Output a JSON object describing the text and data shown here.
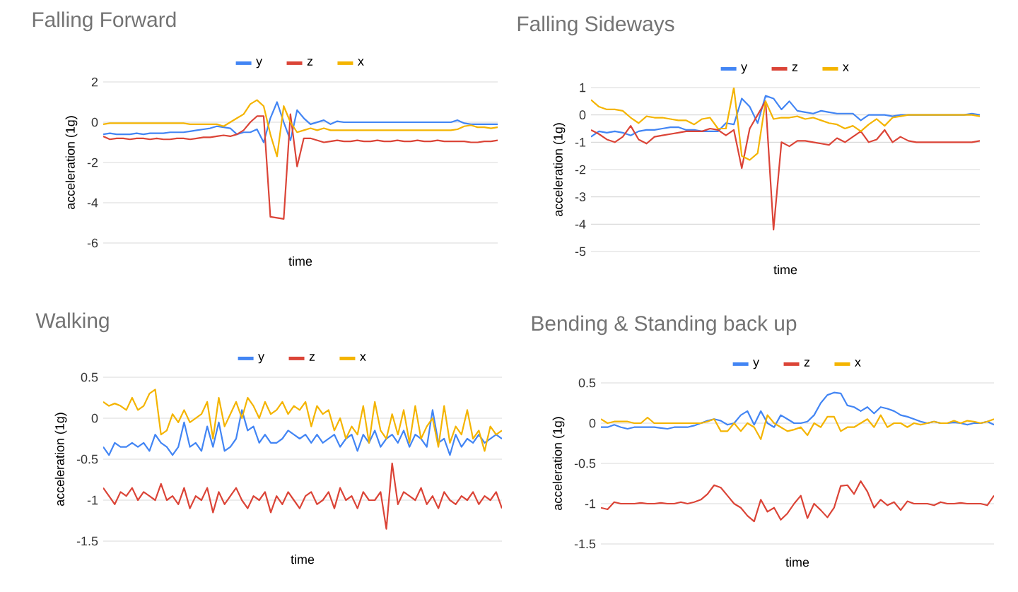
{
  "chart_data": [
    {
      "type": "line",
      "title": "Falling Forward",
      "xlabel": "time",
      "ylabel": "acceleration (1g)",
      "grid": "y",
      "legend": "top",
      "ylim": [
        -6,
        2
      ],
      "yticks": [
        -6,
        -4,
        -2,
        0,
        2
      ],
      "categories": [
        null,
        null,
        null,
        null,
        null,
        null,
        null,
        null,
        null,
        null,
        null,
        null,
        null,
        null,
        null,
        null,
        null,
        null,
        null,
        null,
        null,
        null,
        null,
        null,
        null,
        null,
        null,
        null,
        null,
        null,
        null,
        null,
        null,
        null,
        null,
        null,
        null,
        null,
        null,
        null,
        null,
        null,
        null,
        null,
        null,
        null,
        null,
        null,
        null,
        null,
        null,
        null,
        null,
        null,
        null,
        null,
        null,
        null,
        null,
        null
      ],
      "series": [
        {
          "name": "y",
          "color": "#4285f4",
          "values": [
            -0.6,
            -0.55,
            -0.6,
            -0.6,
            -0.6,
            -0.55,
            -0.6,
            -0.55,
            -0.55,
            -0.55,
            -0.5,
            -0.5,
            -0.5,
            -0.45,
            -0.4,
            -0.35,
            -0.3,
            -0.2,
            -0.25,
            -0.3,
            -0.6,
            -0.5,
            -0.5,
            -0.35,
            -1.0,
            0.2,
            1.0,
            0.0,
            -0.9,
            0.6,
            0.2,
            -0.1,
            0.0,
            0.1,
            -0.1,
            0.05,
            0.0,
            0.0,
            0.0,
            0.0,
            0,
            0,
            0,
            0,
            0,
            0,
            0,
            0,
            0,
            0,
            0,
            0,
            0,
            0.1,
            -0.05,
            -0.1,
            -0.1,
            -0.1,
            -0.1,
            -0.1
          ]
        },
        {
          "name": "z",
          "color": "#db4437",
          "values": [
            -0.7,
            -0.85,
            -0.8,
            -0.8,
            -0.85,
            -0.8,
            -0.8,
            -0.85,
            -0.8,
            -0.85,
            -0.85,
            -0.8,
            -0.8,
            -0.85,
            -0.8,
            -0.75,
            -0.75,
            -0.7,
            -0.65,
            -0.7,
            -0.6,
            -0.4,
            0.0,
            0.3,
            0.3,
            -4.7,
            -4.75,
            -4.8,
            0.4,
            -2.2,
            -0.8,
            -0.8,
            -0.9,
            -1.0,
            -0.95,
            -0.9,
            -0.95,
            -0.95,
            -0.9,
            -0.95,
            -0.95,
            -0.9,
            -0.95,
            -0.95,
            -0.9,
            -0.95,
            -0.95,
            -0.9,
            -0.95,
            -0.95,
            -0.9,
            -0.95,
            -0.95,
            -0.95,
            -0.95,
            -1.0,
            -1.0,
            -0.95,
            -0.95,
            -0.9
          ]
        },
        {
          "name": "x",
          "color": "#f4b400",
          "values": [
            -0.1,
            -0.05,
            -0.05,
            -0.05,
            -0.05,
            -0.05,
            -0.05,
            -0.05,
            -0.05,
            -0.05,
            -0.05,
            -0.05,
            -0.05,
            -0.1,
            -0.1,
            -0.1,
            -0.1,
            -0.1,
            -0.2,
            0.0,
            0.2,
            0.4,
            0.9,
            1.1,
            0.8,
            -0.6,
            -1.7,
            0.8,
            0.0,
            -0.5,
            -0.4,
            -0.3,
            -0.4,
            -0.3,
            -0.4,
            -0.4,
            -0.4,
            -0.4,
            -0.4,
            -0.4,
            -0.4,
            -0.4,
            -0.4,
            -0.4,
            -0.4,
            -0.4,
            -0.4,
            -0.4,
            -0.4,
            -0.4,
            -0.4,
            -0.4,
            -0.4,
            -0.35,
            -0.2,
            -0.15,
            -0.25,
            -0.25,
            -0.3,
            -0.25
          ]
        }
      ]
    },
    {
      "type": "line",
      "title": "Falling Sideways",
      "xlabel": "time",
      "ylabel": "acceleration (1g)",
      "grid": "y",
      "legend": "top",
      "ylim": [
        -5,
        1
      ],
      "yticks": [
        -5,
        -4,
        -3,
        -2,
        -1,
        0,
        1
      ],
      "categories": [
        null,
        null,
        null,
        null,
        null,
        null,
        null,
        null,
        null,
        null,
        null,
        null,
        null,
        null,
        null,
        null,
        null,
        null,
        null,
        null,
        null,
        null,
        null,
        null,
        null,
        null,
        null,
        null,
        null,
        null,
        null,
        null,
        null,
        null,
        null,
        null,
        null,
        null,
        null,
        null,
        null,
        null,
        null,
        null,
        null,
        null,
        null,
        null,
        null,
        null
      ],
      "series": [
        {
          "name": "y",
          "color": "#4285f4",
          "values": [
            -0.8,
            -0.6,
            -0.65,
            -0.6,
            -0.65,
            -0.75,
            -0.6,
            -0.55,
            -0.55,
            -0.5,
            -0.45,
            -0.45,
            -0.55,
            -0.55,
            -0.6,
            -0.6,
            -0.6,
            -0.3,
            -0.35,
            0.6,
            0.3,
            -0.3,
            0.7,
            0.6,
            0.2,
            0.5,
            0.15,
            0.1,
            0.05,
            0.15,
            0.1,
            0.05,
            0.05,
            0.05,
            -0.2,
            0.0,
            0.0,
            0.0,
            -0.05,
            0.0,
            0,
            0,
            0,
            0,
            0,
            0,
            0,
            0,
            0.05,
            0.0
          ]
        },
        {
          "name": "z",
          "color": "#db4437",
          "values": [
            -0.55,
            -0.7,
            -0.9,
            -1.0,
            -0.8,
            -0.4,
            -0.9,
            -1.05,
            -0.8,
            -0.75,
            -0.7,
            -0.65,
            -0.6,
            -0.6,
            -0.6,
            -0.5,
            -0.55,
            -0.75,
            -0.55,
            -1.95,
            -0.5,
            0.0,
            0.5,
            -4.2,
            -1.0,
            -1.15,
            -0.95,
            -0.95,
            -1.0,
            -1.05,
            -1.1,
            -0.85,
            -1.0,
            -0.8,
            -0.6,
            -1.0,
            -0.9,
            -0.55,
            -1.0,
            -0.8,
            -0.95,
            -1.0,
            -1.0,
            -1.0,
            -1.0,
            -1.0,
            -1.0,
            -1.0,
            -1.0,
            -0.95
          ]
        },
        {
          "name": "x",
          "color": "#f4b400",
          "values": [
            0.55,
            0.3,
            0.2,
            0.2,
            0.15,
            -0.1,
            -0.3,
            -0.05,
            -0.1,
            -0.1,
            -0.15,
            -0.2,
            -0.2,
            -0.35,
            -0.15,
            -0.1,
            -0.5,
            -0.5,
            1.0,
            -1.5,
            -1.65,
            -1.4,
            0.5,
            -0.15,
            -0.1,
            -0.1,
            -0.05,
            -0.15,
            -0.1,
            -0.2,
            -0.3,
            -0.35,
            -0.5,
            -0.4,
            -0.6,
            -0.35,
            -0.15,
            -0.4,
            -0.1,
            -0.05,
            0,
            0,
            0,
            0,
            0,
            0,
            0,
            0,
            0,
            -0.05
          ]
        }
      ]
    },
    {
      "type": "line",
      "title": "Walking",
      "xlabel": "time",
      "ylabel": "acceleration (1g)",
      "grid": "y",
      "legend": "top",
      "ylim": [
        -1.5,
        0.5
      ],
      "yticks": [
        -1.5,
        -1,
        -0.5,
        0,
        0.5
      ],
      "categories": [
        null,
        null,
        null,
        null,
        null,
        null,
        null,
        null,
        null,
        null,
        null,
        null,
        null,
        null,
        null,
        null,
        null,
        null,
        null,
        null,
        null,
        null,
        null,
        null,
        null,
        null,
        null,
        null,
        null,
        null,
        null,
        null,
        null,
        null,
        null,
        null,
        null,
        null,
        null,
        null,
        null,
        null,
        null,
        null,
        null,
        null,
        null,
        null,
        null,
        null,
        null,
        null,
        null,
        null,
        null,
        null,
        null,
        null,
        null,
        null,
        null,
        null,
        null,
        null,
        null,
        null,
        null,
        null,
        null,
        null
      ],
      "series": [
        {
          "name": "y",
          "color": "#4285f4",
          "values": [
            -0.35,
            -0.45,
            -0.3,
            -0.35,
            -0.35,
            -0.3,
            -0.35,
            -0.3,
            -0.4,
            -0.2,
            -0.3,
            -0.35,
            -0.45,
            -0.35,
            -0.05,
            -0.35,
            -0.3,
            -0.4,
            -0.1,
            -0.35,
            -0.05,
            -0.4,
            -0.35,
            -0.25,
            0.1,
            -0.15,
            -0.1,
            -0.3,
            -0.2,
            -0.3,
            -0.3,
            -0.25,
            -0.15,
            -0.2,
            -0.25,
            -0.2,
            -0.3,
            -0.2,
            -0.3,
            -0.25,
            -0.2,
            -0.35,
            -0.25,
            -0.2,
            -0.4,
            -0.2,
            -0.3,
            -0.15,
            -0.35,
            -0.25,
            -0.2,
            -0.3,
            -0.15,
            -0.35,
            -0.2,
            -0.25,
            -0.35,
            0.1,
            -0.3,
            -0.25,
            -0.45,
            -0.2,
            -0.35,
            -0.25,
            -0.3,
            -0.2,
            -0.3,
            -0.25,
            -0.2,
            -0.25
          ]
        },
        {
          "name": "z",
          "color": "#db4437",
          "values": [
            -0.85,
            -0.95,
            -1.05,
            -0.9,
            -0.95,
            -0.85,
            -1.0,
            -0.9,
            -0.95,
            -1.0,
            -0.8,
            -1.0,
            -0.95,
            -1.05,
            -0.85,
            -1.1,
            -0.95,
            -1.0,
            -0.85,
            -1.15,
            -0.9,
            -1.05,
            -0.95,
            -0.85,
            -1.0,
            -1.1,
            -0.95,
            -1.0,
            -0.9,
            -1.15,
            -0.95,
            -1.05,
            -0.9,
            -1.0,
            -1.1,
            -0.95,
            -0.9,
            -1.05,
            -1.0,
            -0.9,
            -1.1,
            -0.85,
            -1.0,
            -0.95,
            -1.1,
            -0.9,
            -1.0,
            -1.0,
            -0.9,
            -1.35,
            -0.55,
            -1.05,
            -0.9,
            -0.95,
            -1.0,
            -0.85,
            -1.05,
            -0.95,
            -1.1,
            -0.9,
            -1.0,
            -1.05,
            -0.95,
            -1.0,
            -0.9,
            -1.05,
            -0.95,
            -1.0,
            -0.9,
            -1.1
          ]
        },
        {
          "name": "x",
          "color": "#f4b400",
          "values": [
            0.2,
            0.15,
            0.18,
            0.15,
            0.1,
            0.25,
            0.1,
            0.15,
            0.3,
            0.35,
            -0.2,
            -0.15,
            0.05,
            -0.05,
            0.1,
            -0.05,
            0.0,
            0.05,
            0.2,
            -0.25,
            0.25,
            -0.1,
            0.05,
            0.2,
            0.0,
            0.25,
            0.15,
            0.0,
            0.2,
            0.05,
            0.1,
            0.2,
            0.05,
            0.15,
            0.1,
            0.2,
            -0.1,
            0.15,
            0.05,
            0.1,
            -0.15,
            0.0,
            -0.25,
            -0.1,
            -0.2,
            0.15,
            -0.3,
            0.2,
            -0.15,
            -0.25,
            0.05,
            -0.2,
            0.1,
            -0.3,
            0.15,
            -0.25,
            -0.1,
            0.0,
            -0.35,
            0.15,
            -0.3,
            -0.1,
            -0.2,
            0.1,
            -0.25,
            -0.15,
            -0.4,
            -0.1,
            -0.2,
            -0.15
          ]
        }
      ]
    },
    {
      "type": "line",
      "title": "Bending & Standing back up",
      "xlabel": "time",
      "ylabel": "acceleration (1g)",
      "grid": "y",
      "legend": "top",
      "ylim": [
        -1.5,
        0.5
      ],
      "yticks": [
        -1.5,
        -1,
        -0.5,
        0,
        0.5
      ],
      "categories": [
        null,
        null,
        null,
        null,
        null,
        null,
        null,
        null,
        null,
        null,
        null,
        null,
        null,
        null,
        null,
        null,
        null,
        null,
        null,
        null,
        null,
        null,
        null,
        null,
        null,
        null,
        null,
        null,
        null,
        null,
        null,
        null,
        null,
        null,
        null,
        null,
        null,
        null,
        null,
        null,
        null,
        null,
        null,
        null,
        null,
        null,
        null,
        null,
        null,
        null,
        null,
        null,
        null,
        null,
        null,
        null,
        null,
        null,
        null,
        null
      ],
      "series": [
        {
          "name": "y",
          "color": "#4285f4",
          "values": [
            -0.05,
            -0.05,
            -0.02,
            -0.05,
            -0.07,
            -0.05,
            -0.05,
            -0.05,
            -0.05,
            -0.06,
            -0.07,
            -0.05,
            -0.05,
            -0.05,
            -0.03,
            0.0,
            0.03,
            0.05,
            0.03,
            -0.02,
            0.0,
            0.1,
            0.15,
            -0.02,
            0.15,
            0.0,
            -0.05,
            0.1,
            0.05,
            0.0,
            0.0,
            0.02,
            0.1,
            0.25,
            0.35,
            0.38,
            0.37,
            0.22,
            0.2,
            0.15,
            0.2,
            0.12,
            0.2,
            0.18,
            0.15,
            0.1,
            0.08,
            0.05,
            0.02,
            0.0,
            0.02,
            0.0,
            0.0,
            0.01,
            0.0,
            -0.02,
            0.0,
            0.0,
            0.02,
            -0.02
          ]
        },
        {
          "name": "z",
          "color": "#db4437",
          "values": [
            -1.05,
            -1.07,
            -0.98,
            -1.0,
            -1.0,
            -1.0,
            -0.99,
            -1.0,
            -1.0,
            -0.99,
            -1.0,
            -1.0,
            -0.98,
            -1.0,
            -0.98,
            -0.95,
            -0.88,
            -0.77,
            -0.8,
            -0.9,
            -1.0,
            -1.05,
            -1.15,
            -1.22,
            -0.95,
            -1.1,
            -1.05,
            -1.2,
            -1.12,
            -1.0,
            -0.9,
            -1.18,
            -1.0,
            -1.08,
            -1.17,
            -1.05,
            -0.78,
            -0.77,
            -0.88,
            -0.72,
            -0.85,
            -1.05,
            -0.95,
            -1.02,
            -0.98,
            -1.08,
            -0.97,
            -1.0,
            -1.0,
            -1.0,
            -1.02,
            -0.98,
            -1.0,
            -1.0,
            -0.99,
            -1.0,
            -1.0,
            -1.0,
            -1.02,
            -0.9
          ]
        },
        {
          "name": "x",
          "color": "#f4b400",
          "values": [
            0.05,
            0.0,
            0.02,
            0.02,
            0.02,
            0.0,
            0.0,
            0.07,
            0.0,
            0.0,
            0.0,
            0.0,
            0.0,
            0.0,
            0.0,
            0.0,
            0.02,
            0.05,
            -0.1,
            -0.1,
            0.0,
            -0.1,
            0.0,
            -0.05,
            -0.2,
            0.1,
            0.0,
            -0.05,
            -0.1,
            -0.08,
            -0.05,
            -0.15,
            0.0,
            -0.05,
            0.08,
            0.08,
            -0.1,
            -0.05,
            -0.05,
            0.0,
            0.05,
            -0.05,
            0.1,
            -0.05,
            0.0,
            0.0,
            -0.05,
            0.0,
            -0.02,
            0.0,
            0.02,
            0.0,
            0.0,
            0.03,
            0.0,
            0.03,
            0.02,
            0.0,
            0.02,
            0.05
          ]
        }
      ]
    }
  ]
}
